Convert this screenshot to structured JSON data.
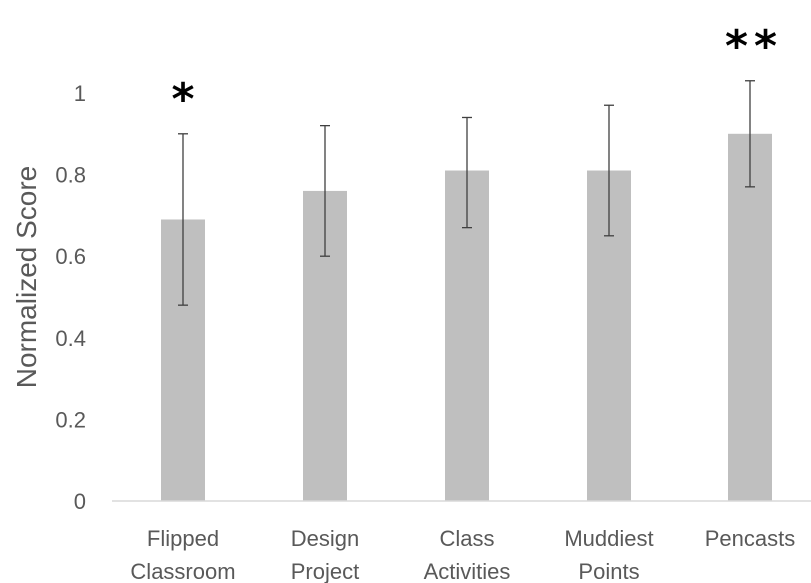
{
  "chart_data": {
    "type": "bar",
    "title": "",
    "xlabel": "",
    "ylabel": "Normalized Score",
    "ylim": [
      0,
      1.0
    ],
    "yticks": [
      "0",
      "0.2",
      "0.4",
      "0.6",
      "0.8",
      "1"
    ],
    "grid": false,
    "legend": "none",
    "categories": [
      [
        "Flipped",
        "Classroom"
      ],
      [
        "Design",
        "Project"
      ],
      [
        "Class",
        "Activities"
      ],
      [
        "Muddiest",
        "Points"
      ],
      [
        "Pencasts"
      ]
    ],
    "values": [
      0.69,
      0.76,
      0.81,
      0.81,
      0.9
    ],
    "error_low": [
      0.48,
      0.6,
      0.67,
      0.65,
      0.77
    ],
    "error_high": [
      0.9,
      0.92,
      0.94,
      0.97,
      1.03
    ],
    "annotations": [
      "*",
      "",
      "",
      "",
      "**"
    ],
    "colors": {
      "bar": "#bfbfbf",
      "error_bar": "#404040",
      "axis": "#d9d9d9",
      "text": "#595959",
      "annotation": "#000000"
    }
  }
}
